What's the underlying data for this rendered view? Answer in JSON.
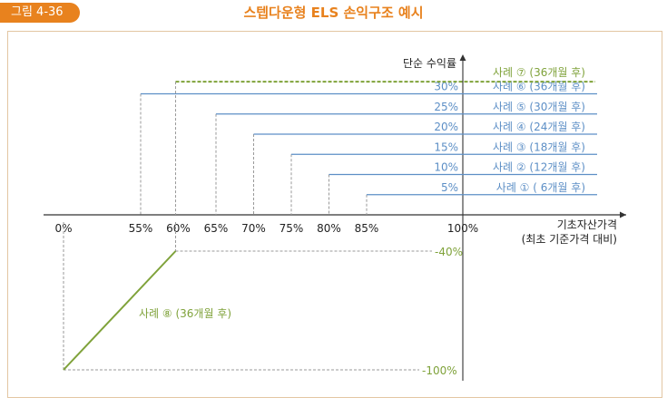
{
  "figure": {
    "label": "그림 4-36",
    "title": "스텝다운형 ELS 손익구조 예시"
  },
  "colors": {
    "accent": "#e8821e",
    "blue": "#5d8fc6",
    "green": "#7fa23a",
    "axis": "#333333",
    "dash": "#999999"
  },
  "chart_data": {
    "type": "line",
    "title": "스텝다운형 ELS 손익구조 예시",
    "xlabel": "기초자산가격 (최초 기준가격 대비)",
    "ylabel": "단순 수익률",
    "x_ticks": [
      "0%",
      "55%",
      "60%",
      "65%",
      "70%",
      "75%",
      "80%",
      "85%",
      "100%"
    ],
    "y_ticks_positive": [
      "5%",
      "10%",
      "15%",
      "20%",
      "25%",
      "30%"
    ],
    "y_ticks_negative": [
      "-40%",
      "-100%"
    ],
    "steps": [
      {
        "name": "사례 ① ( 6개월 후)",
        "barrier": 85,
        "return": 5
      },
      {
        "name": "사례 ② (12개월 후)",
        "barrier": 80,
        "return": 10
      },
      {
        "name": "사례 ③ (18개월 후)",
        "barrier": 75,
        "return": 15
      },
      {
        "name": "사례 ④ (24개월 후)",
        "barrier": 70,
        "return": 20
      },
      {
        "name": "사례 ⑤ (30개월 후)",
        "barrier": 65,
        "return": 25
      },
      {
        "name": "사례 ⑥ (36개월 후)",
        "barrier": 55,
        "return": 30
      }
    ],
    "case7": {
      "name": "사례 ⑦ (36개월 후)",
      "from": 60,
      "return": 33
    },
    "case8": {
      "name": "사례 ⑧ (36개월 후)",
      "points": [
        [
          0,
          -100
        ],
        [
          60,
          -40
        ]
      ]
    }
  }
}
